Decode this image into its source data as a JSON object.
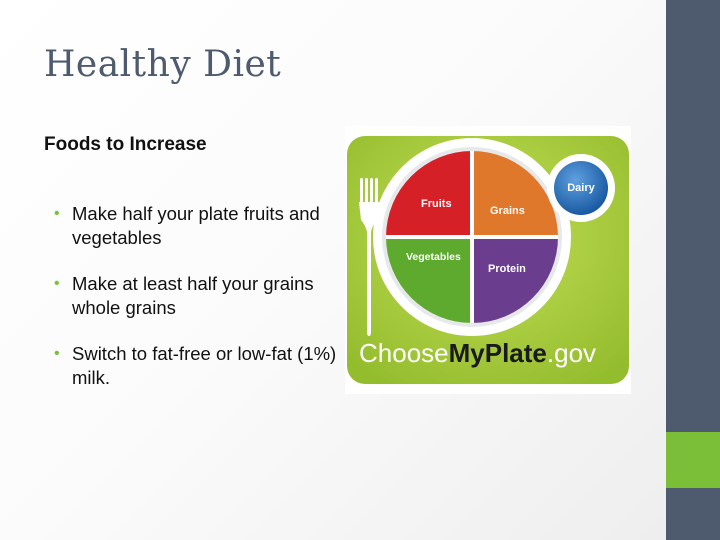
{
  "slide": {
    "title": "Healthy Diet",
    "subtitle": "Foods to Increase",
    "bullets": [
      {
        "text": "Make half your plate fruits and vegetables"
      },
      {
        "text": "Make at least half your grains whole grains"
      },
      {
        "text": "Switch to fat-free or low-fat (1%) milk."
      }
    ]
  },
  "myplate": {
    "sections": {
      "fruits": "Fruits",
      "grains": "Grains",
      "vegetables": "Vegetables",
      "protein": "Protein",
      "dairy": "Dairy"
    },
    "logo": {
      "choose": "Choose",
      "myplate": "MyPlate",
      "gov": ".gov"
    }
  },
  "colors": {
    "title": "#4e5b6f",
    "sidebar": "#4e5b6f",
    "accent": "#7bbf38",
    "fruits": "#d62028",
    "grains": "#e0782c",
    "vegetables": "#5daa2f",
    "protein": "#6a3d8f",
    "dairy": "#1f66b0",
    "plate_bg": "#a6cc3a"
  }
}
